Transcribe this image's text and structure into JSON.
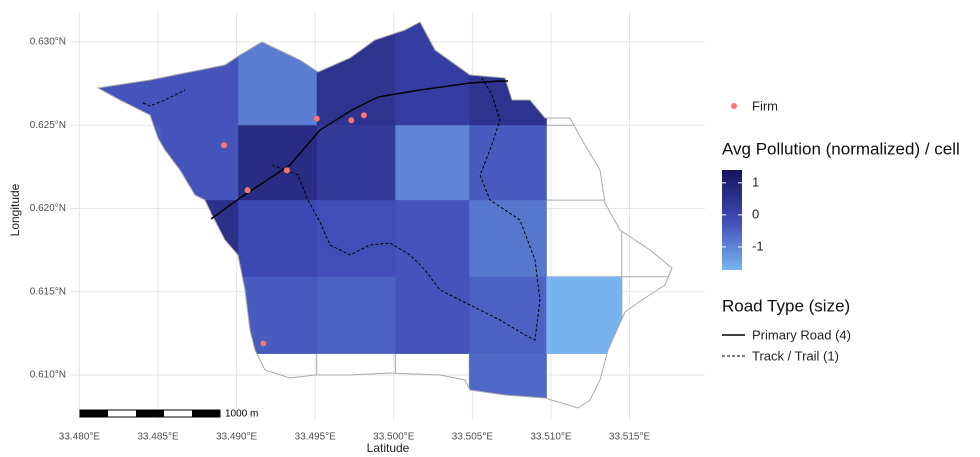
{
  "chart_data": {
    "type": "map",
    "x_label": "Latitude",
    "y_label": "Longitude",
    "xlim": [
      33.4794,
      33.5198
    ],
    "ylim": [
      0.6079,
      0.6318
    ],
    "xticks": [
      {
        "value": 33.48,
        "label": "33.480°E"
      },
      {
        "value": 33.485,
        "label": "33.485°E"
      },
      {
        "value": 33.49,
        "label": "33.490°E"
      },
      {
        "value": 33.495,
        "label": "33.495°E"
      },
      {
        "value": 33.5,
        "label": "33.500°E"
      },
      {
        "value": 33.505,
        "label": "33.505°E"
      },
      {
        "value": 33.51,
        "label": "33.510°E"
      },
      {
        "value": 33.515,
        "label": "33.515°E"
      }
    ],
    "yticks": [
      {
        "value": 0.61,
        "label": "0.610°N"
      },
      {
        "value": 0.615,
        "label": "0.615°N"
      },
      {
        "value": 0.62,
        "label": "0.620°N"
      },
      {
        "value": 0.625,
        "label": "0.625°N"
      },
      {
        "value": 0.63,
        "label": "0.630°N"
      }
    ],
    "grid": true,
    "cells": {
      "lon_edges": [
        33.4804,
        33.4852,
        33.4901,
        33.4951,
        33.5001,
        33.5048,
        33.5097,
        33.5145
      ],
      "lat_edges": [
        0.6297,
        0.625,
        0.6205,
        0.6159,
        0.6113,
        0.6067
      ],
      "values": [
        [
          -0.3,
          -0.3,
          -0.9,
          0.5,
          0.2,
          0.5,
          null
        ],
        [
          -0.4,
          -0.3,
          0.7,
          0.3,
          -1.0,
          -0.4,
          null
        ],
        [
          null,
          0.6,
          -0.1,
          -0.2,
          -0.3,
          -0.8,
          null
        ],
        [
          null,
          null,
          -0.4,
          -0.5,
          -0.3,
          -0.5,
          -1.7
        ],
        [
          null,
          null,
          null,
          null,
          null,
          -0.6,
          null
        ]
      ]
    },
    "colorbar": {
      "title": "Avg Pollution (normalized) / cell",
      "lim": [
        -1.72,
        1.4
      ],
      "ticks": [
        1,
        0,
        -1
      ],
      "colors": [
        "#7ab4f0",
        "#3f4bb5",
        "#15135a"
      ]
    },
    "firms": {
      "name": "Firm",
      "color": "#f8766d",
      "x": [
        33.4892,
        33.4907,
        33.4917,
        33.4932,
        33.4951,
        33.4973,
        33.4981
      ],
      "y": [
        0.6238,
        0.6211,
        0.6119,
        0.6223,
        0.6254,
        0.6253,
        0.6256
      ]
    }
  },
  "legend": {
    "road_title": "Road Type (size)",
    "roads": [
      "Primary Road (4)",
      "Track / Trail (1)"
    ]
  },
  "scale_bar": {
    "label": "1000 m"
  }
}
